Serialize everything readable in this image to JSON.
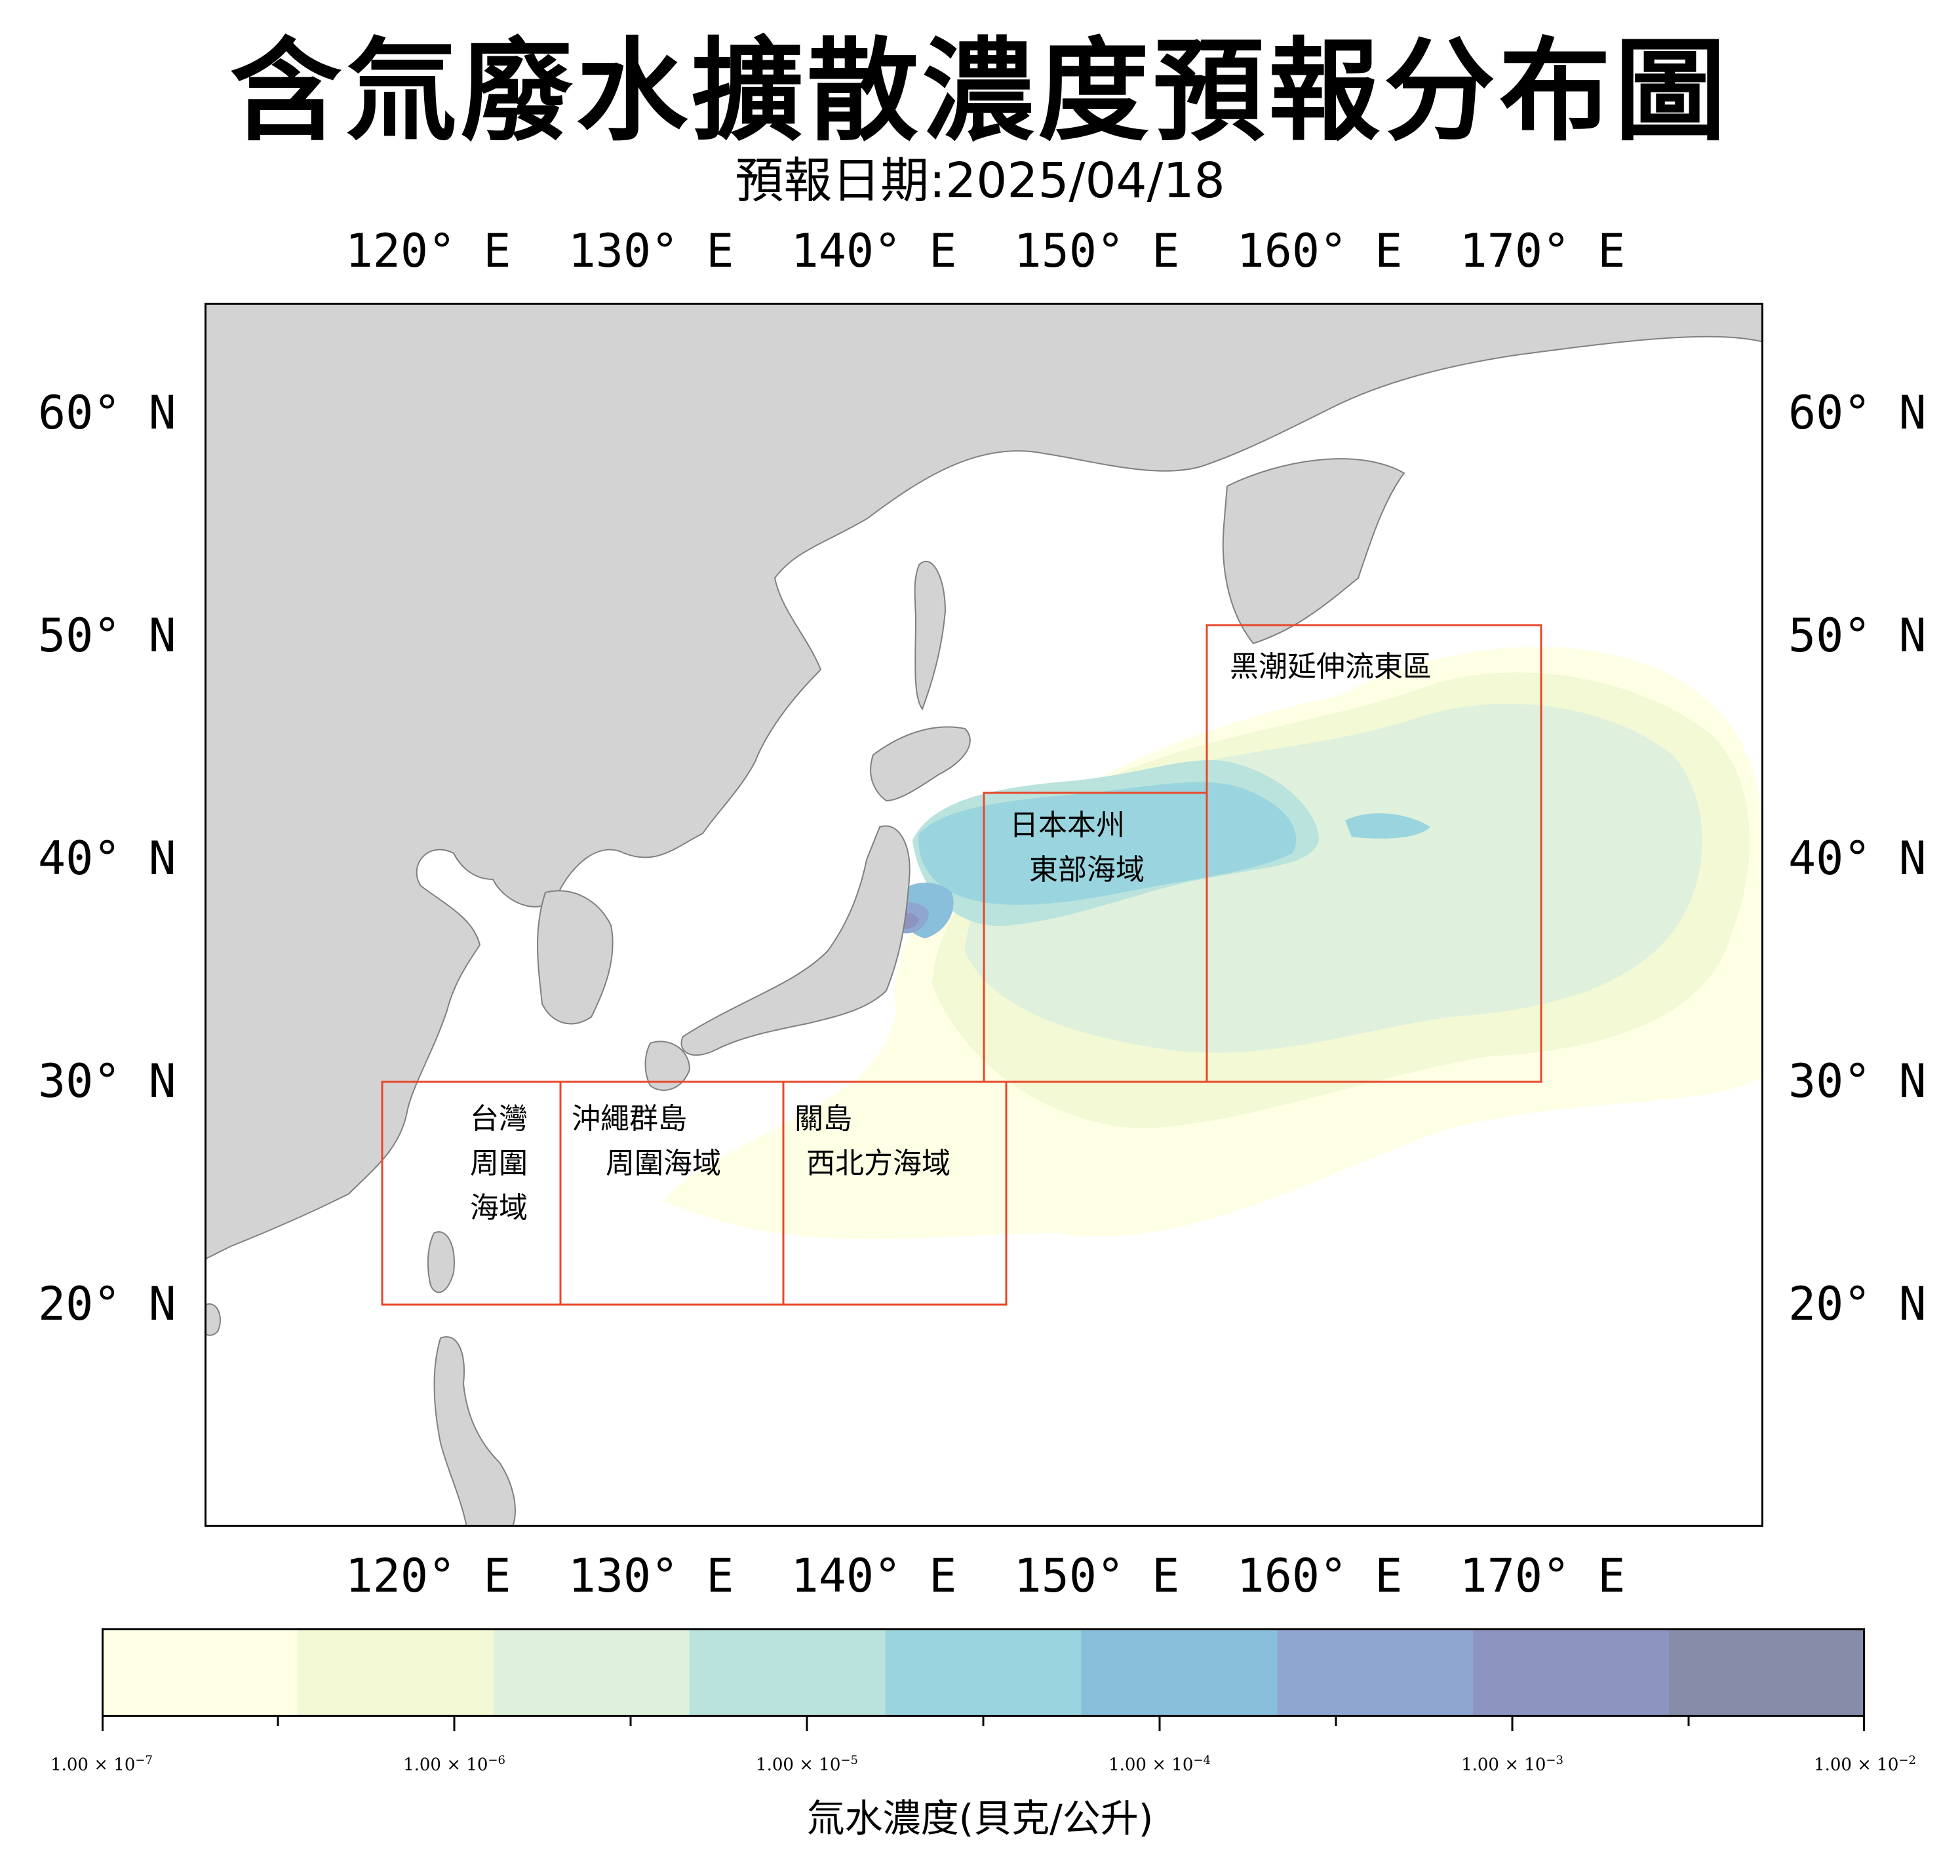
{
  "title": "含氚廢水擴散濃度預報分布圖",
  "subtitle": "預報日期:2025/04/18",
  "map": {
    "extent": {
      "lon_min": 108,
      "lon_max": 178,
      "lat_min": 10,
      "lat_max": 65
    },
    "lon_ticks": [
      {
        "value": 120,
        "label": "120° E"
      },
      {
        "value": 130,
        "label": "130° E"
      },
      {
        "value": 140,
        "label": "140° E"
      },
      {
        "value": 150,
        "label": "150° E"
      },
      {
        "value": 160,
        "label": "160° E"
      },
      {
        "value": 170,
        "label": "170° E"
      }
    ],
    "lat_ticks": [
      {
        "value": 60,
        "label": "60° N"
      },
      {
        "value": 50,
        "label": "50° N"
      },
      {
        "value": 40,
        "label": "40° N"
      },
      {
        "value": 30,
        "label": "30° N"
      },
      {
        "value": 20,
        "label": "20° N"
      }
    ],
    "colors": {
      "land": "#d3d3d3",
      "coast": "#808080",
      "ocean": "#ffffff",
      "box": "#e8472a"
    },
    "regions": [
      {
        "name": "台灣周圍海域",
        "lines": [
          "台灣",
          "周圍",
          "海域"
        ],
        "lon": [
          116,
          124
        ],
        "lat": [
          20,
          30
        ]
      },
      {
        "name": "沖繩群島周圍海域",
        "lines": [
          "沖繩群島",
          "周圍海域"
        ],
        "lon": [
          124,
          134
        ],
        "lat": [
          20,
          30
        ]
      },
      {
        "name": "關島西北方海域",
        "lines": [
          "關島",
          "西北方海域"
        ],
        "lon": [
          134,
          144
        ],
        "lat": [
          20,
          30
        ]
      },
      {
        "name": "日本本州東部海域",
        "lines": [
          "日本本州",
          "東部海域"
        ],
        "lon": [
          143,
          153
        ],
        "lat": [
          30,
          42.5
        ]
      },
      {
        "name": "黑潮延伸流東區",
        "lines": [
          "黑潮延伸流東區"
        ],
        "lon": [
          153,
          168
        ],
        "lat": [
          30,
          50
        ]
      }
    ]
  },
  "colorbar": {
    "label": "氚水濃度(貝克/公升)",
    "scale": "log",
    "ticks": [
      {
        "mantissa": "1.00",
        "exponent": "−7"
      },
      {
        "mantissa": "1.00",
        "exponent": "−6"
      },
      {
        "mantissa": "1.00",
        "exponent": "−5"
      },
      {
        "mantissa": "1.00",
        "exponent": "−4"
      },
      {
        "mantissa": "1.00",
        "exponent": "−3"
      },
      {
        "mantissa": "1.00",
        "exponent": "−2"
      }
    ],
    "levels": [
      "#ffffe6",
      "#f2f9d4",
      "#dff1dc",
      "#b9e3dc",
      "#9ad5df",
      "#8abfdb",
      "#8fa7d0",
      "#8e94c0",
      "#878ca9"
    ]
  }
}
